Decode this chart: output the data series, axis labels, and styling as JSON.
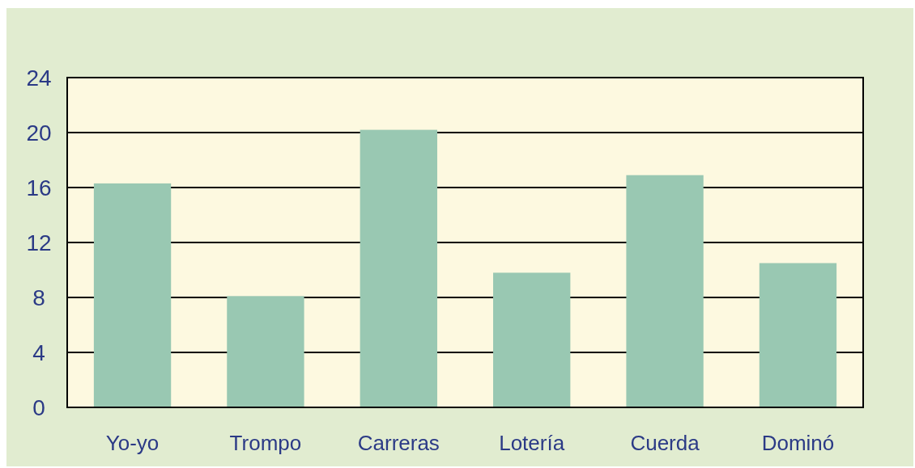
{
  "chart_data": {
    "type": "bar",
    "categories": [
      "Yo-yo",
      "Trompo",
      "Carreras",
      "Lotería",
      "Cuerda",
      "Dominó"
    ],
    "values": [
      16.3,
      8.1,
      20.2,
      9.8,
      16.9,
      10.5
    ],
    "color": "#99c8b2",
    "ylim": [
      0,
      24
    ],
    "yticks": [
      0,
      4,
      8,
      12,
      16,
      20,
      24
    ],
    "grid": "y"
  }
}
